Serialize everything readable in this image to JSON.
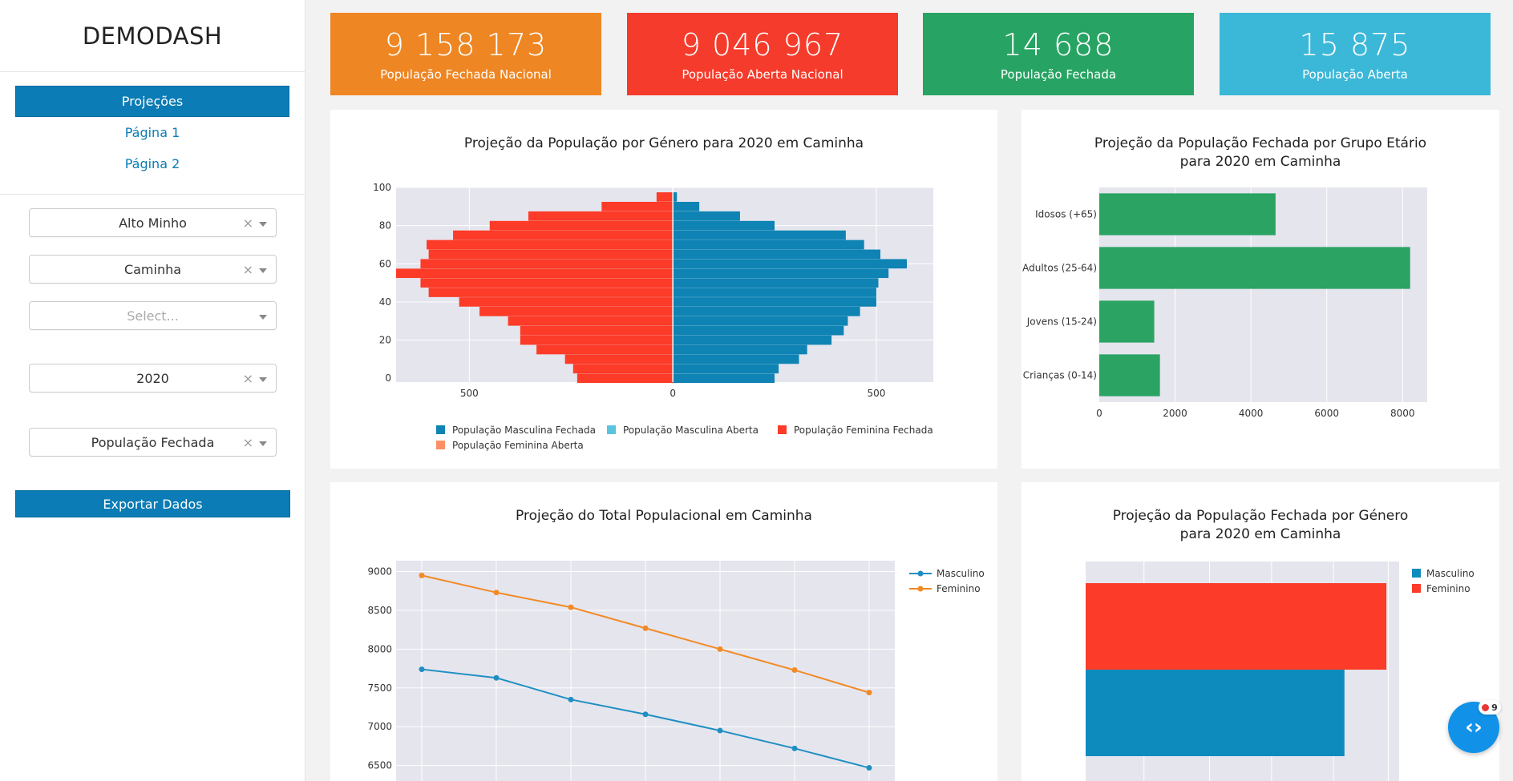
{
  "sidebar": {
    "logo": "DEMODASH",
    "nav": [
      {
        "label": "Projeções",
        "active": true
      },
      {
        "label": "Página 1",
        "active": false
      },
      {
        "label": "Página 2",
        "active": false
      }
    ],
    "filters": {
      "region": "Alto Minho",
      "municipality": "Caminha",
      "empty_placeholder": "Select...",
      "year": "2020",
      "population": "População Fechada"
    },
    "clear_glyph": "×",
    "export_label": "Exportar Dados"
  },
  "kpis": [
    {
      "value": "9 158 173",
      "label": "População Fechada Nacional",
      "color": "#ee8623"
    },
    {
      "value": "9 046 967",
      "label": "População Aberta Nacional",
      "color": "#f53b2b"
    },
    {
      "value": "14 688",
      "label": "População Fechada",
      "color": "#27a463"
    },
    {
      "value": "15 875",
      "label": "População Aberta",
      "color": "#3bb7d8"
    }
  ],
  "colors": {
    "blue": "#0e83b4",
    "red": "#fc3b28",
    "green": "#2aa363",
    "orange": "#f0892b",
    "light_blue": "#5bc3df",
    "salmon": "#fc8f66",
    "plot_bg": "#e5e5ee"
  },
  "charts": {
    "pyramid": {
      "title": "Projeção da População por Género para 2020 em Caminha",
      "legend": [
        {
          "name": "População Masculina Fechada",
          "color": "#0e83b4"
        },
        {
          "name": "População Masculina Aberta",
          "color": "#5bc3df"
        },
        {
          "name": "População Feminina Fechada",
          "color": "#fc3b28"
        },
        {
          "name": "População Feminina Aberta",
          "color": "#fc8f66"
        }
      ]
    },
    "age_groups": {
      "title_line1": "Projeção da População Fechada por Grupo Etário",
      "title_line2": "para 2020 em Caminha"
    },
    "total_line": {
      "title": "Projeção do Total Populacional em Caminha"
    },
    "gender_bar": {
      "title_line1": "Projeção da População Fechada por Género",
      "title_line2": "para 2020 em Caminha"
    }
  },
  "chart_data": [
    {
      "type": "bar",
      "orientation": "horizontal",
      "title": "Projeção da População por Género para 2020 em Caminha",
      "age_groups": [
        0,
        5,
        10,
        15,
        20,
        25,
        30,
        35,
        40,
        45,
        50,
        55,
        60,
        65,
        70,
        75,
        80,
        85,
        90,
        95,
        100
      ],
      "series": [
        {
          "name": "População Masculina Fechada",
          "values": [
            250,
            260,
            310,
            330,
            390,
            420,
            430,
            460,
            500,
            500,
            505,
            530,
            575,
            510,
            470,
            425,
            250,
            165,
            65,
            10
          ]
        },
        {
          "name": "População Feminina Fechada",
          "values": [
            -235,
            -245,
            -265,
            -335,
            -375,
            -375,
            -405,
            -475,
            -525,
            -600,
            -620,
            -680,
            -620,
            -600,
            -605,
            -540,
            -450,
            -355,
            -175,
            -40
          ]
        }
      ],
      "xticks": [
        "500",
        "0",
        "500"
      ],
      "yticks": [
        "0",
        "20",
        "40",
        "60",
        "80",
        "100"
      ],
      "xlim": [
        -680,
        640
      ],
      "ylim": [
        -2,
        100
      ]
    },
    {
      "type": "bar",
      "orientation": "horizontal",
      "title": "Projeção da População Fechada por Grupo Etário para 2020 em Caminha",
      "categories": [
        "Idosos (+65)",
        "Adultos (25-64)",
        "Jovens (15-24)",
        "Crianças (0-14)"
      ],
      "values": [
        4650,
        8200,
        1450,
        1600
      ],
      "xticks": [
        "0",
        "2000",
        "4000",
        "6000",
        "8000"
      ],
      "xlim": [
        0,
        8650
      ]
    },
    {
      "type": "line",
      "title": "Projeção do Total Populacional em Caminha",
      "x": [
        1,
        2,
        3,
        4,
        5,
        6,
        7
      ],
      "series": [
        {
          "name": "Masculino",
          "values": [
            7740,
            7630,
            7350,
            7160,
            6950,
            6720,
            6470
          ],
          "color": "#1f8fc3"
        },
        {
          "name": "Feminino",
          "values": [
            8950,
            8730,
            8540,
            8270,
            8000,
            7730,
            7440
          ],
          "color": "#f28a26"
        }
      ],
      "yticks": [
        "6500",
        "7000",
        "7500",
        "8000",
        "8500",
        "9000"
      ],
      "ylim": [
        6300,
        9140
      ]
    },
    {
      "type": "bar",
      "orientation": "horizontal",
      "title": "Projeção da População Fechada por Género para 2020 em Caminha",
      "series": [
        {
          "name": "Masculino",
          "value": 7100,
          "color": "#0e8bbd"
        },
        {
          "name": "Feminino",
          "value": 8250,
          "color": "#fc3b28"
        }
      ],
      "xlim": [
        0,
        8600
      ]
    }
  ],
  "fab": {
    "badge": "9"
  }
}
